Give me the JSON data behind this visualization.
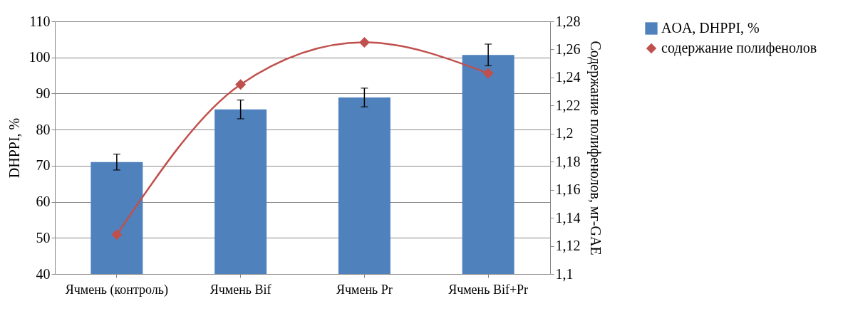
{
  "chart_data": {
    "type": "bar",
    "categories": [
      "Ячмень (контроль)",
      "Ячмень Bif",
      "Ячмень Pr",
      "Ячмень Bif+Pr"
    ],
    "ylabel": "DHPPI, %",
    "y2label": "Содержание полифенолов, мг-GAE",
    "series": [
      {
        "name": "AOA, DHPPI, %",
        "color": "#4f81bd",
        "values": [
          71,
          85.6,
          88.9,
          100.7
        ],
        "errors": [
          2.2,
          2.6,
          2.6,
          3
        ]
      },
      {
        "name": "содержание полифенолов",
        "type": "line",
        "axis": "y2",
        "color": "#c0504d",
        "marker": "diamond",
        "values": [
          1.128,
          1.235,
          1.265,
          1.243
        ]
      }
    ],
    "ylim": [
      40,
      110
    ],
    "yticks": [
      40,
      50,
      60,
      70,
      80,
      90,
      100,
      110
    ],
    "y2lim": [
      1.1,
      1.28
    ],
    "y2ticks": [
      {
        "value": 1.1,
        "label": "1,1"
      },
      {
        "value": 1.12,
        "label": "1,12"
      },
      {
        "value": 1.14,
        "label": "1,14"
      },
      {
        "value": 1.16,
        "label": "1,16"
      },
      {
        "value": 1.18,
        "label": "1,18"
      },
      {
        "value": 1.2,
        "label": "1,2"
      },
      {
        "value": 1.22,
        "label": "1,22"
      },
      {
        "value": 1.24,
        "label": "1,24"
      },
      {
        "value": 1.26,
        "label": "1,26"
      },
      {
        "value": 1.28,
        "label": "1,28"
      }
    ],
    "grid": "y",
    "legend": "right"
  }
}
